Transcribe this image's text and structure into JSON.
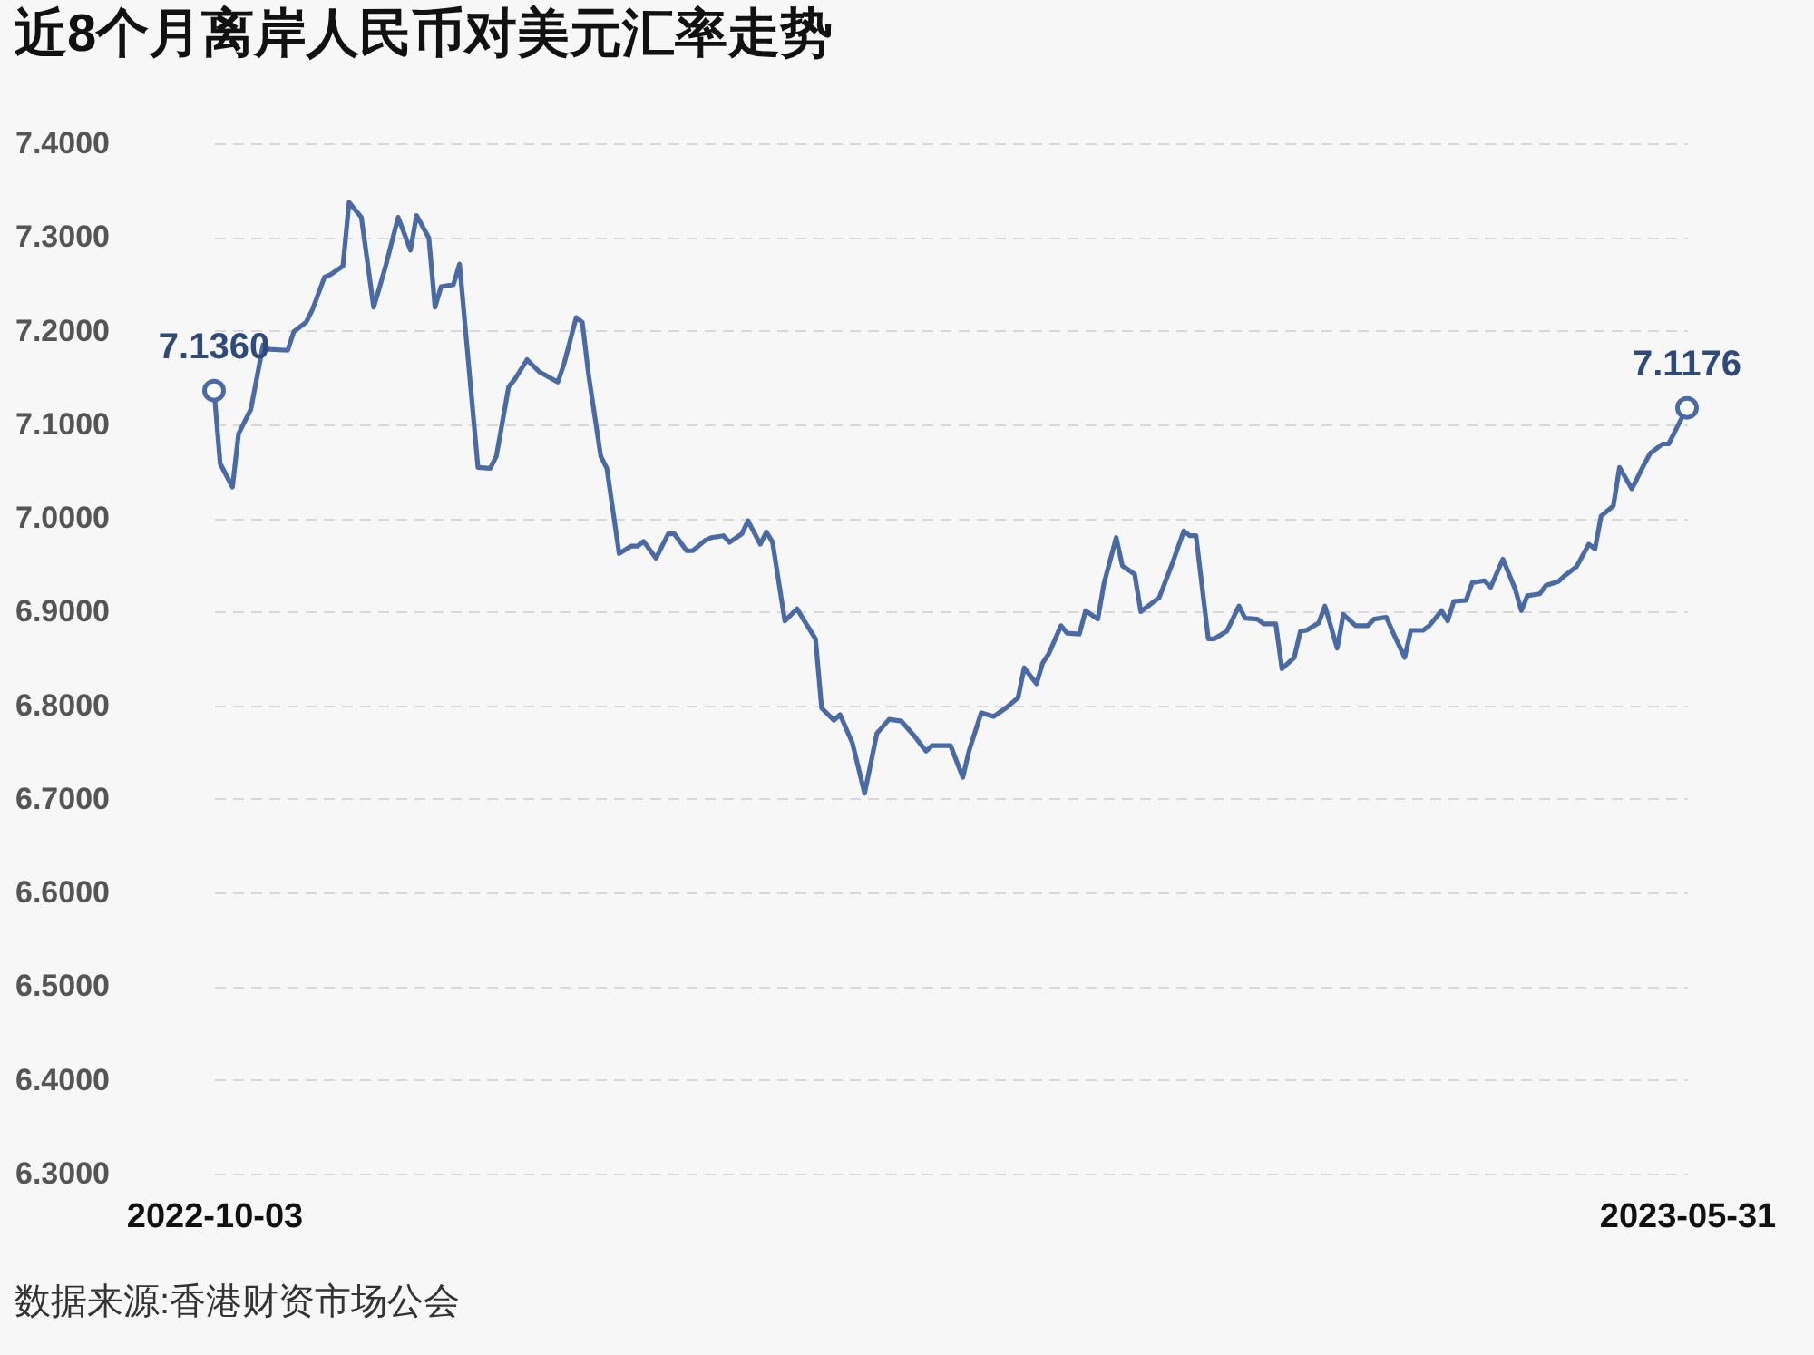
{
  "chart_data": {
    "type": "line",
    "title": "近8个月离岸人民币对美元汇率走势",
    "annotations": [
      "数据来源:香港财资市场公会"
    ],
    "x": [
      "2022-10-03",
      "2022-10-04",
      "2022-10-06",
      "2022-10-07",
      "2022-10-09",
      "2022-10-11",
      "2022-10-12",
      "2022-10-15",
      "2022-10-16",
      "2022-10-18",
      "2022-10-19",
      "2022-10-21",
      "2022-10-22",
      "2022-10-24",
      "2022-10-25",
      "2022-10-27",
      "2022-10-29",
      "2022-10-30",
      "2022-10-31",
      "2022-11-02",
      "2022-11-04",
      "2022-11-05",
      "2022-11-07",
      "2022-11-08",
      "2022-11-09",
      "2022-11-11",
      "2022-11-12",
      "2022-11-15",
      "2022-11-17",
      "2022-11-18",
      "2022-11-20",
      "2022-11-21",
      "2022-11-23",
      "2022-11-25",
      "2022-11-28",
      "2022-11-29",
      "2022-12-01",
      "2022-12-02",
      "2022-12-03",
      "2022-12-05",
      "2022-12-06",
      "2022-12-08",
      "2022-12-10",
      "2022-12-11",
      "2022-12-12",
      "2022-12-14",
      "2022-12-16",
      "2022-12-17",
      "2022-12-19",
      "2022-12-20",
      "2022-12-22",
      "2022-12-23",
      "2022-12-25",
      "2022-12-26",
      "2022-12-28",
      "2022-12-29",
      "2022-12-31",
      "2023-01-01",
      "2023-01-02",
      "2023-01-04",
      "2023-01-06",
      "2023-01-07",
      "2023-01-09",
      "2023-01-10",
      "2023-01-12",
      "2023-01-13",
      "2023-01-15",
      "2023-01-17",
      "2023-01-19",
      "2023-01-21",
      "2023-01-23",
      "2023-01-25",
      "2023-01-27",
      "2023-01-28",
      "2023-01-31",
      "2023-02-02",
      "2023-02-03",
      "2023-02-05",
      "2023-02-07",
      "2023-02-09",
      "2023-02-11",
      "2023-02-12",
      "2023-02-14",
      "2023-02-15",
      "2023-02-16",
      "2023-02-18",
      "2023-02-19",
      "2023-02-21",
      "2023-02-22",
      "2023-02-24",
      "2023-02-25",
      "2023-02-27",
      "2023-02-28",
      "2023-03-02",
      "2023-03-03",
      "2023-03-05",
      "2023-03-06",
      "2023-03-08",
      "2023-03-10",
      "2023-03-11",
      "2023-03-12",
      "2023-03-14",
      "2023-03-15",
      "2023-03-17",
      "2023-03-19",
      "2023-03-20",
      "2023-03-22",
      "2023-03-23",
      "2023-03-25",
      "2023-03-26",
      "2023-03-28",
      "2023-03-29",
      "2023-03-30",
      "2023-04-01",
      "2023-04-02",
      "2023-04-04",
      "2023-04-05",
      "2023-04-07",
      "2023-04-09",
      "2023-04-10",
      "2023-04-12",
      "2023-04-13",
      "2023-04-15",
      "2023-04-16",
      "2023-04-18",
      "2023-04-19",
      "2023-04-21",
      "2023-04-22",
      "2023-04-23",
      "2023-04-25",
      "2023-04-26",
      "2023-04-28",
      "2023-04-29",
      "2023-05-01",
      "2023-05-03",
      "2023-05-04",
      "2023-05-05",
      "2023-05-07",
      "2023-05-08",
      "2023-05-10",
      "2023-05-11",
      "2023-05-13",
      "2023-05-15",
      "2023-05-16",
      "2023-05-17",
      "2023-05-19",
      "2023-05-20",
      "2023-05-22",
      "2023-05-24",
      "2023-05-25",
      "2023-05-27",
      "2023-05-28",
      "2023-05-29",
      "2023-05-31"
    ],
    "series": [
      {
        "color": "#4a6aa5",
        "values": [
          7.136,
          7.058,
          7.033,
          7.09,
          7.116,
          7.185,
          7.18,
          7.179,
          7.199,
          7.209,
          7.222,
          7.257,
          7.26,
          7.269,
          7.337,
          7.321,
          7.225,
          7.247,
          7.27,
          7.321,
          7.286,
          7.323,
          7.299,
          7.225,
          7.247,
          7.249,
          7.271,
          7.054,
          7.053,
          7.066,
          7.14,
          7.148,
          7.169,
          7.156,
          7.145,
          7.164,
          7.214,
          7.209,
          7.154,
          7.066,
          7.053,
          6.962,
          6.97,
          6.97,
          6.975,
          6.957,
          6.983,
          6.983,
          6.965,
          6.965,
          6.976,
          6.979,
          6.981,
          6.974,
          6.983,
          6.997,
          6.972,
          6.985,
          6.974,
          6.89,
          6.903,
          6.892,
          6.871,
          6.797,
          6.784,
          6.79,
          6.76,
          6.706,
          6.77,
          6.785,
          6.783,
          6.768,
          6.751,
          6.757,
          6.757,
          6.723,
          6.751,
          6.792,
          6.788,
          6.797,
          6.808,
          6.84,
          6.823,
          6.845,
          6.855,
          6.885,
          6.877,
          6.876,
          6.901,
          6.892,
          6.93,
          6.979,
          6.949,
          6.94,
          6.9,
          6.91,
          6.915,
          6.949,
          6.986,
          6.981,
          6.981,
          6.871,
          6.871,
          6.879,
          6.906,
          6.893,
          6.892,
          6.887,
          6.887,
          6.839,
          6.851,
          6.879,
          6.88,
          6.888,
          6.906,
          6.861,
          6.897,
          6.885,
          6.885,
          6.892,
          6.894,
          6.879,
          6.851,
          6.88,
          6.88,
          6.885,
          6.901,
          6.89,
          6.911,
          6.912,
          6.931,
          6.933,
          6.926,
          6.956,
          6.924,
          6.901,
          6.917,
          6.919,
          6.928,
          6.932,
          6.938,
          6.948,
          6.972,
          6.967,
          7.002,
          7.013,
          7.054,
          7.031,
          7.057,
          7.069,
          7.079,
          7.079,
          7.092,
          7.1176
        ],
        "value_labels": [
          "7.1360",
          null,
          null,
          null,
          null,
          null,
          null,
          null,
          null,
          null,
          null,
          null,
          null,
          null,
          null,
          null,
          null,
          null,
          null,
          null,
          null,
          null,
          null,
          null,
          null,
          null,
          null,
          null,
          null,
          null,
          null,
          null,
          null,
          null,
          null,
          null,
          null,
          null,
          null,
          null,
          null,
          null,
          null,
          null,
          null,
          null,
          null,
          null,
          null,
          null,
          null,
          null,
          null,
          null,
          null,
          null,
          null,
          null,
          null,
          null,
          null,
          null,
          null,
          null,
          null,
          null,
          null,
          null,
          null,
          null,
          null,
          null,
          null,
          null,
          null,
          null,
          null,
          null,
          null,
          null,
          null,
          null,
          null,
          null,
          null,
          null,
          null,
          null,
          null,
          null,
          null,
          null,
          null,
          null,
          null,
          null,
          null,
          null,
          null,
          null,
          null,
          null,
          null,
          null,
          null,
          null,
          null,
          null,
          null,
          null,
          null,
          null,
          null,
          null,
          null,
          null,
          null,
          null,
          null,
          null,
          null,
          null,
          null,
          null,
          null,
          null,
          null,
          null,
          null,
          null,
          null,
          null,
          null,
          null,
          null,
          null,
          null,
          null,
          null,
          null,
          null,
          null,
          null,
          null,
          null,
          null,
          null,
          null,
          null,
          null,
          null,
          null,
          null,
          "7.1176"
        ]
      }
    ],
    "xlim": [
      "2022-10-03",
      "2023-05-31"
    ],
    "xticks": [
      "2022-10-03",
      "2023-05-31"
    ],
    "ylim": [
      6.3,
      7.4
    ],
    "yticks": [
      {
        "value": 6.3,
        "label": "6.3000"
      },
      {
        "value": 6.4,
        "label": "6.4000"
      },
      {
        "value": 6.5,
        "label": "6.5000"
      },
      {
        "value": 6.6,
        "label": "6.6000"
      },
      {
        "value": 6.7,
        "label": "6.7000"
      },
      {
        "value": 6.8,
        "label": "6.8000"
      },
      {
        "value": 6.9,
        "label": "6.9000"
      },
      {
        "value": 7.0,
        "label": "7.0000"
      },
      {
        "value": 7.1,
        "label": "7.1000"
      },
      {
        "value": 7.2,
        "label": "7.2000"
      },
      {
        "value": 7.3,
        "label": "7.3000"
      },
      {
        "value": 7.4,
        "label": "7.4000"
      }
    ],
    "grid": "y",
    "line_style": "solid"
  }
}
